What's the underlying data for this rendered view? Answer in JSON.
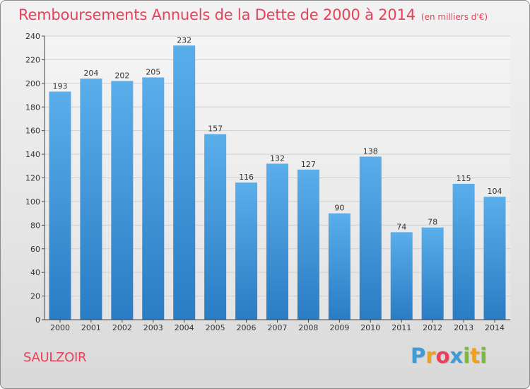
{
  "header": {
    "title": "Remboursements Annuels de la Dette de 2000 à 2014",
    "units": "(en milliers d'€)"
  },
  "location": "SAULZOIR",
  "logo": {
    "text": "Proxiti",
    "letters": [
      {
        "ch": "P",
        "color": "#3f9ad6"
      },
      {
        "ch": "r",
        "color": "#f0a11c"
      },
      {
        "ch": "o",
        "color": "#e8415a"
      },
      {
        "ch": "x",
        "color": "#3f9ad6"
      },
      {
        "ch": "i",
        "color": "#7cb83f"
      },
      {
        "ch": "t",
        "color": "#f0a11c"
      },
      {
        "ch": "i",
        "color": "#7cb83f"
      }
    ]
  },
  "colors": {
    "bar_top": "#5aaeea",
    "bar_bottom": "#2a7cc4",
    "title": "#e8415a",
    "grid": "#d0d0d0"
  },
  "chart_data": {
    "type": "bar",
    "title": "Remboursements Annuels de la Dette de 2000 à 2014",
    "subtitle": "(en milliers d'€)",
    "xlabel": "",
    "ylabel": "",
    "categories": [
      "2000",
      "2001",
      "2002",
      "2003",
      "2004",
      "2005",
      "2006",
      "2007",
      "2008",
      "2009",
      "2010",
      "2011",
      "2012",
      "2013",
      "2014"
    ],
    "values": [
      193,
      204,
      202,
      205,
      232,
      157,
      116,
      132,
      127,
      90,
      138,
      74,
      78,
      115,
      104
    ],
    "ylim": [
      0,
      240
    ],
    "yticks": [
      0,
      20,
      40,
      60,
      80,
      100,
      120,
      140,
      160,
      180,
      200,
      220,
      240
    ],
    "grid": true,
    "data_labels": true
  }
}
